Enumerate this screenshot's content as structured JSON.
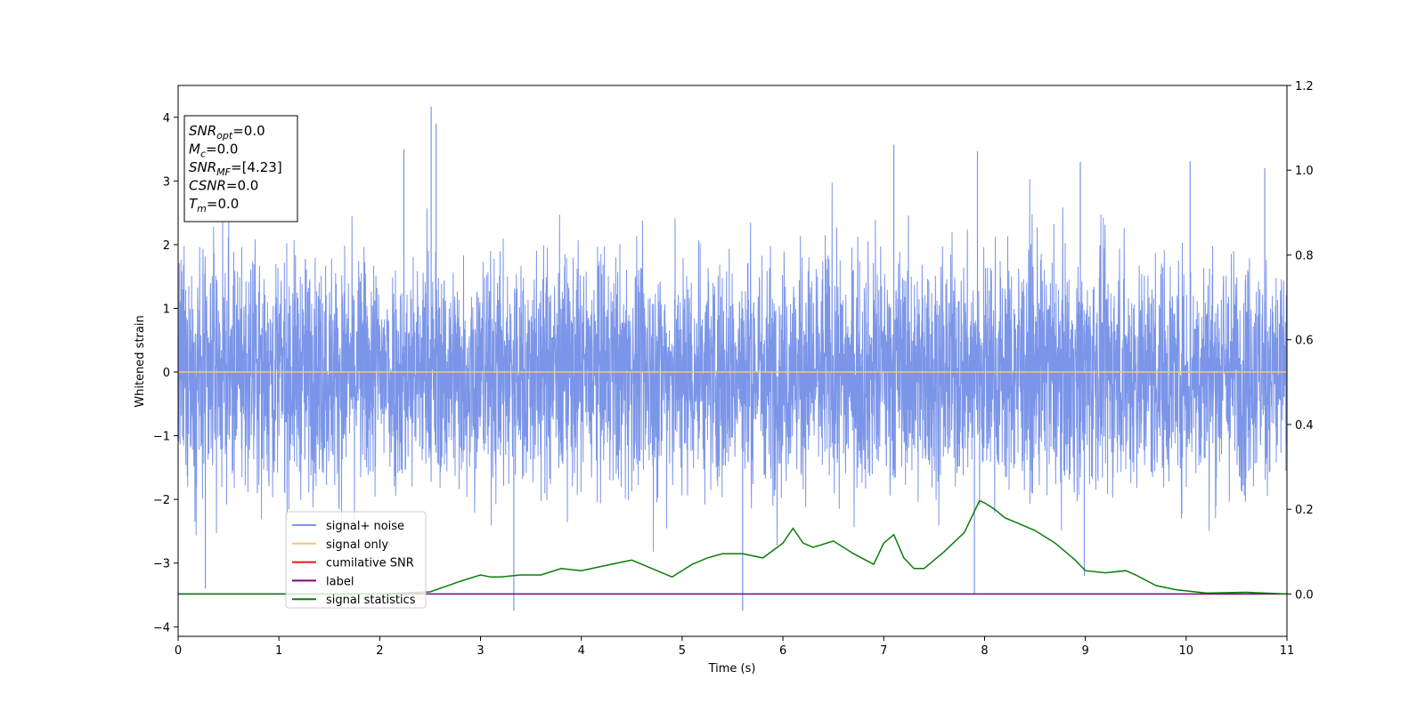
{
  "chart_data": {
    "type": "line",
    "xlabel": "Time (s)",
    "ylabel": "Whitened strain",
    "xlim": [
      0,
      11
    ],
    "ylim_left": [
      -4.15,
      4.5
    ],
    "ylim_right": [
      -0.1,
      1.2
    ],
    "x_ticks": [
      0,
      1,
      2,
      3,
      4,
      5,
      6,
      7,
      8,
      9,
      10,
      11
    ],
    "y_ticks_left": [
      4,
      3,
      2,
      1,
      0,
      -1,
      -2,
      -3,
      -4
    ],
    "y_ticks_left_labels": [
      "4",
      "3",
      "2",
      "1",
      "0",
      "−1",
      "−2",
      "−3",
      "−4"
    ],
    "y_ticks_right": [
      1.2,
      1.0,
      0.8,
      0.6,
      0.4,
      0.2,
      0.0
    ],
    "y_ticks_right_labels": [
      "1.2",
      "1.0",
      "0.8",
      "0.6",
      "0.4",
      "0.2",
      "0.0"
    ],
    "grid": false,
    "legend_position": "lower-left",
    "info_box": [
      {
        "base": "SNR",
        "sub": "opt",
        "value": "=0.0"
      },
      {
        "base": "M",
        "sub": "c",
        "value": "=0.0"
      },
      {
        "base": "SNR",
        "sub": "MF",
        "value": "=[4.23]"
      },
      {
        "base": "CSNR",
        "sub": "",
        "value": "=0.0"
      },
      {
        "base": "T",
        "sub": "m",
        "value": "=0.0"
      }
    ],
    "series": [
      {
        "name": "signal+ noise",
        "color": "#7b95e8",
        "axis": "left",
        "noise_range": [
          -2.6,
          2.5
        ],
        "notable_spikes": [
          {
            "x": 2.51,
            "y": 4.17
          },
          {
            "x": 2.56,
            "y": 3.9
          },
          {
            "x": 0.27,
            "y": -3.4
          },
          {
            "x": 3.33,
            "y": -3.75
          },
          {
            "x": 5.6,
            "y": -3.75
          },
          {
            "x": 7.9,
            "y": -3.48
          },
          {
            "x": 7.93,
            "y": 3.47
          },
          {
            "x": 7.1,
            "y": 3.57
          },
          {
            "x": 2.24,
            "y": 3.5
          },
          {
            "x": 10.04,
            "y": 3.31
          },
          {
            "x": 10.78,
            "y": 3.2
          },
          {
            "x": 8.95,
            "y": 3.3
          },
          {
            "x": 8.99,
            "y": -3.2
          }
        ]
      },
      {
        "name": "signal only",
        "color": "#f5c57a",
        "axis": "left",
        "x": [
          0,
          11
        ],
        "y": [
          0,
          0
        ]
      },
      {
        "name": "cumilative SNR",
        "color": "#e8161b",
        "axis": "right",
        "x": [],
        "y": []
      },
      {
        "name": "label",
        "color": "#800080",
        "axis": "right",
        "x": [
          0,
          11
        ],
        "y": [
          0,
          0
        ]
      },
      {
        "name": "signal statistics",
        "color": "#0a7d0a",
        "axis": "right",
        "x": [
          0,
          2.0,
          2.5,
          2.8,
          3.0,
          3.1,
          3.2,
          3.4,
          3.6,
          3.8,
          4.0,
          4.2,
          4.5,
          4.7,
          4.9,
          5.1,
          5.25,
          5.4,
          5.6,
          5.8,
          6.0,
          6.1,
          6.2,
          6.3,
          6.5,
          6.7,
          6.9,
          7.0,
          7.1,
          7.2,
          7.3,
          7.4,
          7.6,
          7.8,
          7.95,
          8.0,
          8.1,
          8.2,
          8.3,
          8.5,
          8.7,
          8.9,
          9.0,
          9.2,
          9.4,
          9.5,
          9.7,
          9.9,
          10.2,
          10.6,
          11
        ],
        "y": [
          0.0,
          0.0,
          0.005,
          0.03,
          0.045,
          0.04,
          0.04,
          0.045,
          0.045,
          0.06,
          0.055,
          0.065,
          0.08,
          0.06,
          0.04,
          0.07,
          0.085,
          0.095,
          0.095,
          0.085,
          0.12,
          0.155,
          0.12,
          0.11,
          0.125,
          0.095,
          0.07,
          0.12,
          0.14,
          0.085,
          0.06,
          0.06,
          0.1,
          0.145,
          0.22,
          0.215,
          0.2,
          0.18,
          0.17,
          0.15,
          0.12,
          0.08,
          0.055,
          0.05,
          0.055,
          0.045,
          0.02,
          0.01,
          0.002,
          0.004,
          0.0
        ]
      }
    ]
  }
}
